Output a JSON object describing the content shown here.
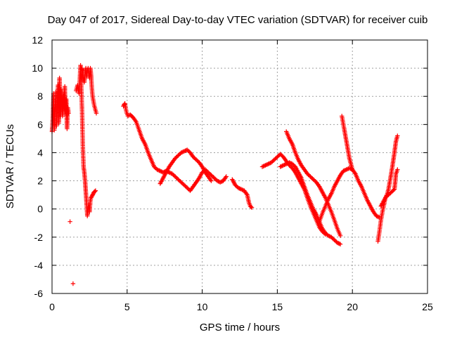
{
  "chart_data": {
    "type": "scatter",
    "title": "Day 047 of 2017, Sidereal Day-to-day VTEC variation (SDTVAR) for receiver cuib",
    "xlabel": "GPS time / hours",
    "ylabel": "SDTVAR / TECUs",
    "xlim": [
      0,
      25
    ],
    "ylim": [
      -6,
      12
    ],
    "xticks": [
      0,
      5,
      10,
      15,
      20,
      25
    ],
    "yticks": [
      -6,
      -4,
      -2,
      0,
      2,
      4,
      6,
      8,
      10,
      12
    ],
    "grid": true,
    "marker": "+",
    "color": "#ff0000",
    "series": [
      {
        "name": "SDTVAR",
        "segments": [
          [
            [
              0.0,
              5.5
            ],
            [
              0.05,
              6.4
            ],
            [
              0.1,
              8.2
            ],
            [
              0.15,
              5.6
            ],
            [
              0.2,
              7.0
            ],
            [
              0.25,
              8.3
            ],
            [
              0.3,
              5.9
            ],
            [
              0.35,
              7.2
            ],
            [
              0.4,
              8.8
            ],
            [
              0.45,
              6.1
            ],
            [
              0.5,
              9.3
            ],
            [
              0.55,
              6.6
            ],
            [
              0.6,
              8.5
            ],
            [
              0.65,
              7.6
            ],
            [
              0.7,
              6.6
            ],
            [
              0.75,
              8.1
            ],
            [
              0.8,
              7.2
            ],
            [
              0.85,
              8.7
            ],
            [
              0.9,
              6.8
            ],
            [
              0.95,
              7.8
            ],
            [
              1.0,
              5.7
            ],
            [
              1.05,
              7.2
            ],
            [
              1.1,
              6.8
            ]
          ],
          [
            [
              1.2,
              -0.9
            ]
          ],
          [
            [
              1.4,
              -5.3
            ]
          ],
          [
            [
              1.6,
              8.4
            ],
            [
              1.7,
              8.8
            ],
            [
              1.8,
              8.2
            ],
            [
              1.9,
              10.2
            ],
            [
              2.0,
              7.0
            ],
            [
              2.05,
              4.5
            ],
            [
              2.1,
              3.0
            ],
            [
              2.15,
              2.6
            ],
            [
              2.2,
              2.0
            ],
            [
              2.25,
              1.2
            ],
            [
              2.3,
              0.4
            ],
            [
              2.35,
              -0.5
            ],
            [
              2.4,
              0.0
            ],
            [
              2.45,
              0.3
            ],
            [
              2.5,
              -0.2
            ],
            [
              2.55,
              0.6
            ],
            [
              2.6,
              0.8
            ],
            [
              2.7,
              1.0
            ],
            [
              2.8,
              1.2
            ],
            [
              2.9,
              1.3
            ]
          ],
          [
            [
              1.95,
              10.0
            ],
            [
              2.05,
              9.8
            ],
            [
              2.1,
              9.3
            ],
            [
              2.15,
              9.0
            ],
            [
              2.2,
              9.6
            ],
            [
              2.25,
              10.0
            ],
            [
              2.3,
              9.4
            ],
            [
              2.35,
              9.8
            ],
            [
              2.4,
              10.0
            ],
            [
              2.45,
              9.6
            ],
            [
              2.5,
              9.3
            ],
            [
              2.55,
              10.0
            ],
            [
              2.6,
              9.5
            ],
            [
              2.65,
              8.6
            ],
            [
              2.7,
              8.0
            ],
            [
              2.8,
              7.4
            ],
            [
              2.9,
              7.0
            ],
            [
              2.95,
              6.8
            ]
          ],
          [
            [
              4.75,
              7.3
            ],
            [
              4.85,
              7.5
            ],
            [
              4.95,
              6.9
            ],
            [
              5.05,
              6.6
            ],
            [
              5.2,
              6.7
            ],
            [
              5.3,
              6.6
            ],
            [
              5.4,
              6.5
            ],
            [
              5.6,
              6.2
            ],
            [
              5.8,
              5.6
            ],
            [
              6.0,
              5.0
            ],
            [
              6.2,
              4.6
            ],
            [
              6.4,
              4.0
            ],
            [
              6.6,
              3.5
            ],
            [
              6.8,
              3.0
            ],
            [
              7.0,
              2.8
            ],
            [
              7.2,
              2.7
            ],
            [
              7.4,
              2.6
            ],
            [
              7.6,
              2.7
            ],
            [
              7.8,
              2.6
            ],
            [
              8.0,
              2.5
            ],
            [
              8.2,
              2.3
            ],
            [
              8.4,
              2.1
            ],
            [
              8.6,
              1.9
            ],
            [
              8.8,
              1.7
            ],
            [
              9.0,
              1.5
            ],
            [
              9.2,
              1.3
            ],
            [
              9.4,
              1.6
            ],
            [
              9.6,
              1.9
            ],
            [
              9.8,
              2.2
            ],
            [
              10.0,
              2.6
            ],
            [
              10.2,
              2.8
            ],
            [
              10.4,
              2.6
            ],
            [
              10.6,
              2.4
            ],
            [
              10.8,
              2.2
            ],
            [
              11.0,
              2.0
            ],
            [
              11.2,
              1.9
            ],
            [
              11.4,
              2.0
            ],
            [
              11.6,
              2.3
            ]
          ],
          [
            [
              7.2,
              1.8
            ],
            [
              7.4,
              2.2
            ],
            [
              7.6,
              2.6
            ],
            [
              7.8,
              3.0
            ],
            [
              8.0,
              3.3
            ],
            [
              8.2,
              3.6
            ],
            [
              8.4,
              3.8
            ],
            [
              8.6,
              4.0
            ],
            [
              8.8,
              4.1
            ],
            [
              9.0,
              4.2
            ],
            [
              9.2,
              4.0
            ],
            [
              9.4,
              3.7
            ],
            [
              9.6,
              3.5
            ],
            [
              9.8,
              3.3
            ],
            [
              10.0,
              3.0
            ],
            [
              10.2,
              2.6
            ],
            [
              10.4,
              2.3
            ],
            [
              10.6,
              2.0
            ]
          ],
          [
            [
              12.0,
              2.1
            ],
            [
              12.2,
              1.7
            ],
            [
              12.4,
              1.5
            ],
            [
              12.6,
              1.4
            ],
            [
              12.8,
              1.3
            ],
            [
              13.0,
              1.0
            ],
            [
              13.1,
              0.5
            ],
            [
              13.2,
              0.2
            ],
            [
              13.3,
              0.1
            ]
          ],
          [
            [
              14.0,
              3.0
            ],
            [
              14.2,
              3.1
            ],
            [
              14.4,
              3.2
            ],
            [
              14.6,
              3.3
            ],
            [
              14.8,
              3.5
            ],
            [
              15.0,
              3.7
            ],
            [
              15.2,
              3.9
            ],
            [
              15.4,
              3.7
            ],
            [
              15.6,
              3.4
            ],
            [
              15.8,
              3.1
            ],
            [
              16.0,
              2.9
            ],
            [
              16.2,
              2.6
            ],
            [
              16.4,
              2.2
            ],
            [
              16.6,
              1.8
            ],
            [
              16.8,
              1.4
            ],
            [
              17.0,
              0.8
            ],
            [
              17.2,
              0.2
            ],
            [
              17.4,
              -0.3
            ],
            [
              17.6,
              -0.8
            ],
            [
              17.8,
              -1.3
            ],
            [
              18.0,
              -1.6
            ],
            [
              18.2,
              -1.8
            ]
          ],
          [
            [
              15.2,
              3.0
            ],
            [
              15.4,
              3.1
            ],
            [
              15.6,
              3.2
            ],
            [
              15.8,
              3.3
            ],
            [
              16.0,
              3.2
            ],
            [
              16.2,
              3.0
            ],
            [
              16.4,
              2.6
            ],
            [
              16.6,
              2.2
            ],
            [
              16.8,
              1.6
            ],
            [
              17.0,
              1.0
            ],
            [
              17.2,
              0.5
            ],
            [
              17.4,
              0.0
            ],
            [
              17.6,
              -0.4
            ],
            [
              17.8,
              -0.9
            ],
            [
              18.0,
              -1.4
            ],
            [
              18.2,
              -1.7
            ],
            [
              18.4,
              -1.9
            ],
            [
              18.6,
              -2.0
            ],
            [
              18.8,
              -2.2
            ],
            [
              19.0,
              -2.4
            ],
            [
              19.2,
              -2.5
            ]
          ],
          [
            [
              15.6,
              5.5
            ],
            [
              15.8,
              5.0
            ],
            [
              16.0,
              4.6
            ],
            [
              16.2,
              4.0
            ],
            [
              16.4,
              3.5
            ],
            [
              16.6,
              3.1
            ],
            [
              16.8,
              2.8
            ],
            [
              17.0,
              2.5
            ],
            [
              17.2,
              2.3
            ],
            [
              17.4,
              2.1
            ],
            [
              17.6,
              1.9
            ],
            [
              17.8,
              1.6
            ],
            [
              18.0,
              1.2
            ],
            [
              18.2,
              0.8
            ],
            [
              18.4,
              0.3
            ],
            [
              18.6,
              -0.2
            ],
            [
              18.8,
              -0.8
            ],
            [
              19.0,
              -1.4
            ],
            [
              19.2,
              -1.9
            ]
          ],
          [
            [
              17.8,
              -0.9
            ],
            [
              18.0,
              -0.3
            ],
            [
              18.2,
              0.2
            ],
            [
              18.4,
              0.7
            ],
            [
              18.6,
              1.1
            ],
            [
              18.8,
              1.6
            ],
            [
              19.0,
              2.0
            ],
            [
              19.2,
              2.4
            ],
            [
              19.4,
              2.7
            ],
            [
              19.6,
              2.8
            ],
            [
              19.8,
              2.9
            ],
            [
              20.0,
              2.8
            ],
            [
              20.2,
              2.5
            ],
            [
              20.4,
              2.0
            ],
            [
              20.6,
              1.6
            ],
            [
              20.8,
              1.1
            ],
            [
              21.0,
              0.6
            ],
            [
              21.2,
              0.2
            ],
            [
              21.4,
              -0.2
            ],
            [
              21.6,
              -0.5
            ],
            [
              21.8,
              -0.6
            ]
          ],
          [
            [
              19.3,
              6.6
            ],
            [
              19.4,
              6.0
            ],
            [
              19.5,
              5.4
            ],
            [
              19.6,
              4.8
            ],
            [
              19.7,
              4.2
            ],
            [
              19.8,
              3.6
            ],
            [
              19.9,
              3.2
            ],
            [
              20.0,
              2.8
            ]
          ],
          [
            [
              21.7,
              -2.3
            ],
            [
              21.8,
              -1.6
            ],
            [
              21.9,
              -0.8
            ],
            [
              22.0,
              -0.2
            ],
            [
              22.1,
              0.3
            ],
            [
              22.2,
              0.8
            ],
            [
              22.3,
              1.0
            ],
            [
              22.4,
              1.4
            ],
            [
              22.5,
              2.0
            ],
            [
              22.6,
              2.6
            ],
            [
              22.7,
              3.3
            ],
            [
              22.8,
              4.0
            ],
            [
              22.9,
              4.8
            ],
            [
              23.0,
              5.2
            ]
          ],
          [
            [
              21.9,
              0.2
            ],
            [
              22.0,
              0.4
            ],
            [
              22.2,
              0.8
            ],
            [
              22.4,
              1.0
            ],
            [
              22.6,
              1.2
            ],
            [
              22.8,
              1.4
            ],
            [
              22.9,
              2.5
            ],
            [
              23.0,
              2.8
            ]
          ]
        ]
      }
    ]
  }
}
